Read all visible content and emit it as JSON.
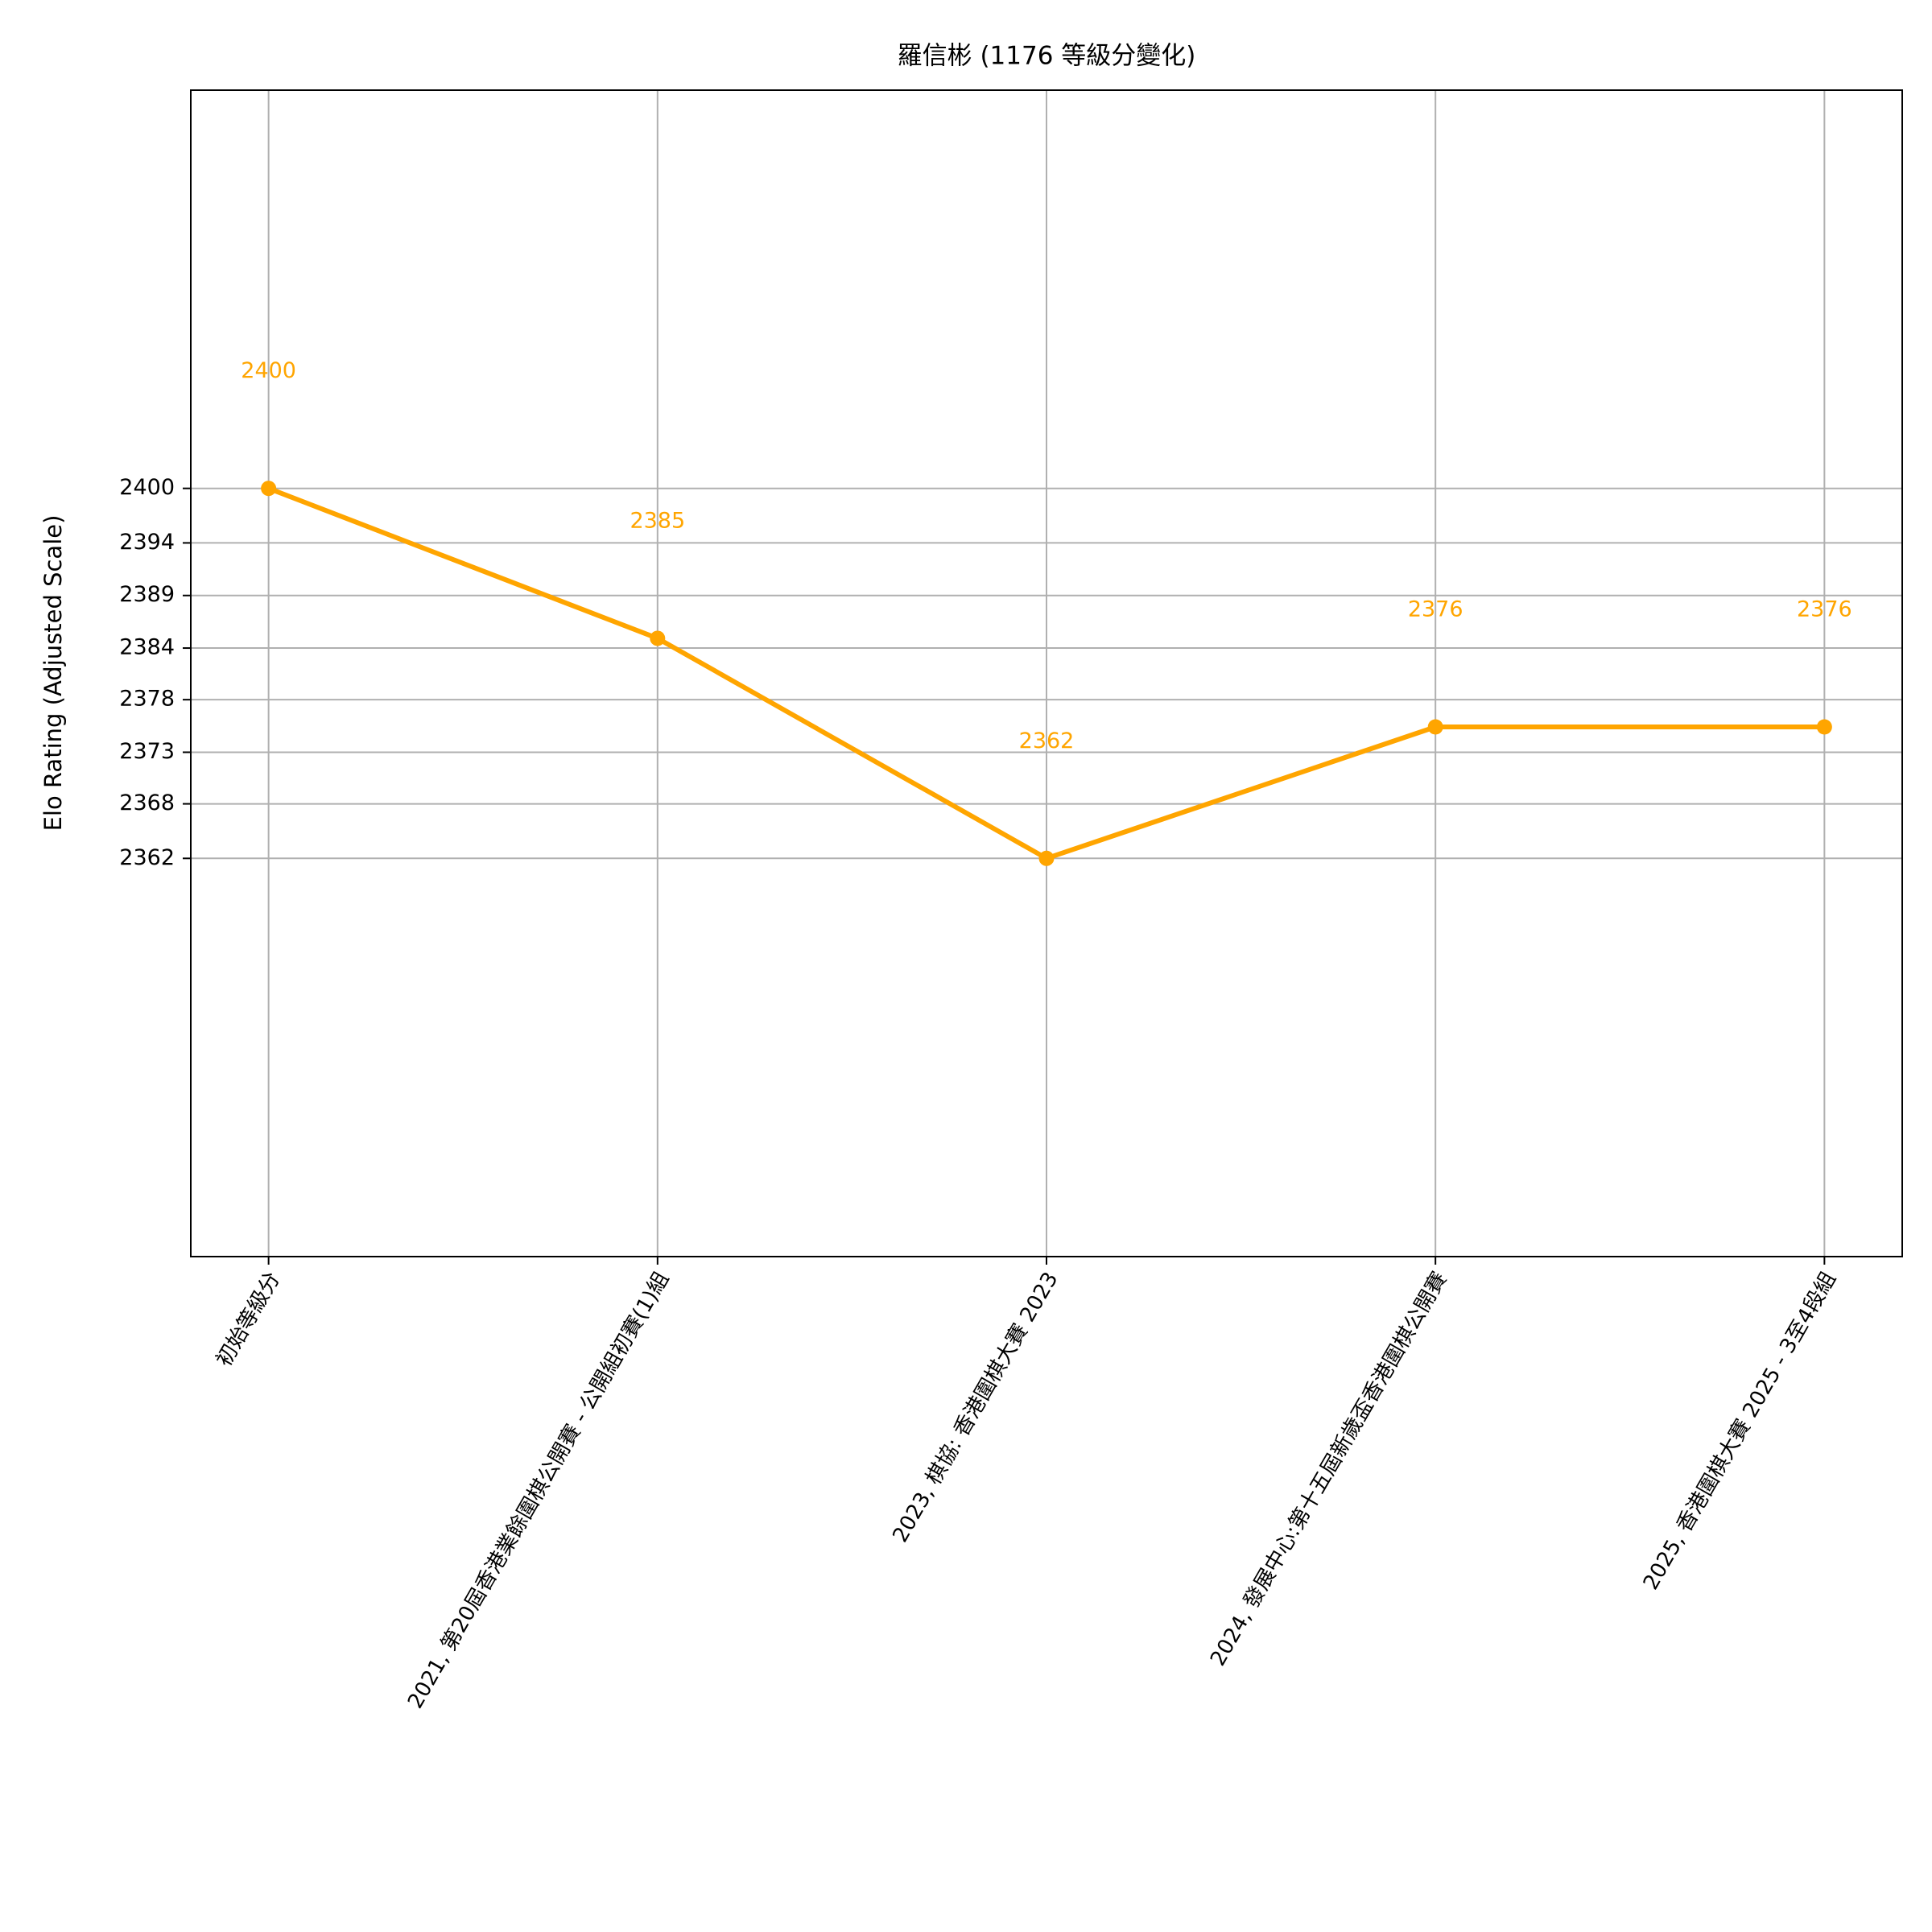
{
  "chart_data": {
    "type": "line",
    "title": "羅信彬 (1176 等級分變化)",
    "y_label": "Elo Rating (Adjusted Scale)",
    "categories": [
      "初始等級分",
      "2021, 第20屆香港業餘圍棋公開賽 - 公開組初賽(1)組",
      "2023, 棋協: 香港圍棋大賽 2023",
      "2024, 發展中心:第十五屆新歲盃香港圍棋公開賽",
      "2025, 香港圍棋大賽 2025 - 3至4段組"
    ],
    "values": [
      2400,
      2384.6,
      2362,
      2375.5,
      2375.5
    ],
    "value_labels": [
      "2400",
      "2385",
      "2362",
      "2376",
      "2376"
    ],
    "color": "#ffa500",
    "ylim": [
      2321.1,
      2440.9
    ],
    "yticks": [
      2400,
      {
        "value": 2394.4,
        "label": "2394"
      },
      2389,
      {
        "value": 2383.6,
        "label": "2384"
      },
      {
        "value": 2378.3,
        "label": "2378"
      },
      {
        "value": 2372.9,
        "label": "2373"
      },
      {
        "value": 2367.6,
        "label": "2368"
      },
      2362
    ],
    "grid": true
  }
}
